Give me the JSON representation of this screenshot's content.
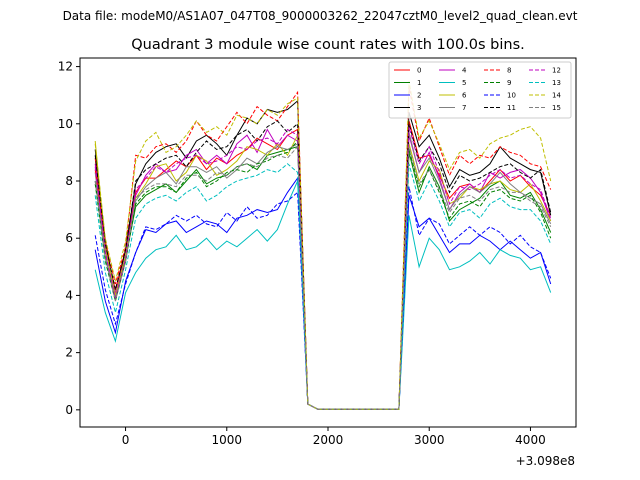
{
  "suptitle": "Data file: modeM0/AS1A07_047T08_9000003262_22047cztM0_level2_quad_clean.evt",
  "chart_data": {
    "type": "line",
    "title": "Quadrant 3 module wise count rates with 100.0s bins.",
    "xlabel": "",
    "ylabel": "",
    "x_offset_label": "+3.098e8",
    "xlim": [
      -450,
      4450
    ],
    "ylim": [
      -0.6,
      12.3
    ],
    "xticks": [
      0,
      1000,
      2000,
      3000,
      4000
    ],
    "yticks": [
      0,
      2,
      4,
      6,
      8,
      10,
      12
    ],
    "grid": false,
    "legend_position": "top-right",
    "legend_columns": 4,
    "x": [
      -300,
      -200,
      -100,
      0,
      100,
      200,
      300,
      400,
      500,
      600,
      700,
      800,
      900,
      1000,
      1100,
      1200,
      1300,
      1400,
      1500,
      1600,
      1700,
      1800,
      1900,
      2000,
      2100,
      2200,
      2300,
      2400,
      2500,
      2600,
      2700,
      2800,
      2900,
      3000,
      3100,
      3200,
      3300,
      3400,
      3500,
      3600,
      3700,
      3800,
      3900,
      4000,
      4100,
      4200
    ],
    "series": [
      {
        "name": "0",
        "color": "#ff0000",
        "dash": "solid",
        "values": [
          8.8,
          5.6,
          4.2,
          5.6,
          7.6,
          8.1,
          8.1,
          8.4,
          8.7,
          8.5,
          8.9,
          8.4,
          8.8,
          8.6,
          8.9,
          9.1,
          9.5,
          9.3,
          9.1,
          9.6,
          9.8,
          0.2,
          0.02,
          0.02,
          0.02,
          0.02,
          0.02,
          0.02,
          0.02,
          0.02,
          0.02,
          10.1,
          8.8,
          8.9,
          8.2,
          7.4,
          7.8,
          7.9,
          7.6,
          8.0,
          8.4,
          8.0,
          8.2,
          7.8,
          7.5,
          6.8
        ]
      },
      {
        "name": "1",
        "color": "#008000",
        "dash": "solid",
        "values": [
          8.0,
          5.3,
          4.0,
          5.3,
          7.1,
          7.5,
          7.7,
          7.9,
          7.6,
          8.0,
          8.4,
          7.9,
          8.1,
          8.2,
          8.5,
          8.6,
          8.4,
          8.9,
          9.0,
          9.1,
          9.2,
          0.2,
          0.02,
          0.02,
          0.02,
          0.02,
          0.02,
          0.02,
          0.02,
          0.02,
          0.02,
          9.0,
          7.6,
          8.5,
          7.8,
          6.6,
          7.0,
          7.2,
          7.4,
          7.8,
          8.0,
          7.5,
          7.4,
          7.6,
          7.0,
          6.2
        ]
      },
      {
        "name": "2",
        "color": "#0000ff",
        "dash": "solid",
        "values": [
          5.6,
          3.8,
          2.7,
          4.5,
          5.5,
          6.3,
          6.2,
          6.5,
          6.6,
          6.2,
          6.4,
          6.6,
          6.5,
          6.2,
          6.7,
          6.8,
          7.0,
          6.9,
          7.0,
          7.6,
          8.1,
          0.2,
          0.02,
          0.02,
          0.02,
          0.02,
          0.02,
          0.02,
          0.02,
          0.02,
          0.02,
          7.5,
          6.4,
          6.7,
          6.1,
          5.5,
          5.8,
          5.8,
          6.1,
          5.9,
          5.6,
          5.9,
          5.6,
          5.3,
          5.5,
          4.4
        ]
      },
      {
        "name": "3",
        "color": "#000000",
        "dash": "solid",
        "values": [
          9.1,
          5.9,
          4.0,
          5.6,
          7.9,
          8.6,
          9.0,
          9.2,
          9.3,
          8.8,
          9.4,
          9.6,
          9.3,
          8.9,
          9.6,
          10.2,
          10.0,
          10.5,
          10.4,
          10.5,
          10.8,
          0.2,
          0.02,
          0.02,
          0.02,
          0.02,
          0.02,
          0.02,
          0.02,
          0.02,
          0.02,
          10.4,
          9.2,
          9.6,
          8.8,
          7.8,
          8.4,
          8.2,
          8.3,
          8.6,
          9.2,
          8.8,
          8.6,
          8.4,
          8.3,
          6.8
        ]
      },
      {
        "name": "4",
        "color": "#bf00bf",
        "dash": "solid",
        "values": [
          8.6,
          5.6,
          4.1,
          5.4,
          7.5,
          8.2,
          8.6,
          8.3,
          8.4,
          8.9,
          9.1,
          8.6,
          8.9,
          8.6,
          9.3,
          9.6,
          9.0,
          9.8,
          9.2,
          9.6,
          9.4,
          0.2,
          0.02,
          0.02,
          0.02,
          0.02,
          0.02,
          0.02,
          0.02,
          0.02,
          0.02,
          9.6,
          8.3,
          9.0,
          8.1,
          7.0,
          7.6,
          7.9,
          7.6,
          8.3,
          8.1,
          8.3,
          8.4,
          8.1,
          7.6,
          6.6
        ]
      },
      {
        "name": "5",
        "color": "#00bfbf",
        "dash": "solid",
        "values": [
          4.9,
          3.4,
          2.4,
          4.1,
          4.8,
          5.3,
          5.6,
          5.7,
          6.1,
          5.6,
          5.7,
          6.0,
          5.6,
          5.9,
          5.7,
          6.0,
          6.3,
          5.9,
          6.3,
          7.2,
          8.0,
          0.2,
          0.02,
          0.02,
          0.02,
          0.02,
          0.02,
          0.02,
          0.02,
          0.02,
          0.02,
          6.8,
          5.0,
          6.0,
          5.6,
          4.9,
          5.0,
          5.2,
          5.5,
          5.1,
          5.6,
          5.4,
          5.3,
          4.9,
          5.0,
          4.1
        ]
      },
      {
        "name": "6",
        "color": "#bfbf00",
        "dash": "solid",
        "values": [
          9.4,
          5.7,
          4.0,
          5.4,
          7.4,
          7.9,
          8.5,
          8.6,
          8.0,
          8.3,
          8.9,
          8.7,
          8.2,
          8.4,
          8.7,
          9.2,
          9.1,
          8.9,
          9.3,
          8.9,
          9.6,
          0.2,
          0.02,
          0.02,
          0.02,
          0.02,
          0.02,
          0.02,
          0.02,
          0.02,
          0.02,
          9.3,
          8.0,
          8.7,
          8.4,
          7.2,
          7.4,
          7.8,
          7.7,
          7.9,
          8.0,
          7.7,
          7.6,
          7.9,
          7.3,
          6.6
        ]
      },
      {
        "name": "7",
        "color": "#808080",
        "dash": "solid",
        "values": [
          8.3,
          5.4,
          3.9,
          5.2,
          7.3,
          7.8,
          8.1,
          8.3,
          7.9,
          8.5,
          8.5,
          8.3,
          8.5,
          8.1,
          8.4,
          8.8,
          8.6,
          9.0,
          9.2,
          9.1,
          9.3,
          0.2,
          0.02,
          0.02,
          0.02,
          0.02,
          0.02,
          0.02,
          0.02,
          0.02,
          0.02,
          9.7,
          8.3,
          8.8,
          8.0,
          7.0,
          7.5,
          7.8,
          7.6,
          7.9,
          8.3,
          7.9,
          7.6,
          7.4,
          7.2,
          6.5
        ]
      },
      {
        "name": "8",
        "color": "#ff0000",
        "dash": "dashed",
        "values": [
          8.4,
          5.9,
          4.4,
          5.7,
          8.9,
          8.8,
          9.2,
          9.3,
          9.0,
          9.4,
          10.1,
          9.6,
          9.4,
          9.9,
          10.4,
          10.0,
          10.6,
          10.3,
          10.1,
          10.6,
          11.1,
          0.2,
          0.02,
          0.02,
          0.02,
          0.02,
          0.02,
          0.02,
          0.02,
          0.02,
          0.02,
          11.3,
          9.4,
          10.2,
          9.2,
          8.2,
          8.9,
          8.6,
          8.9,
          8.8,
          9.2,
          9.0,
          8.9,
          8.6,
          8.5,
          7.7
        ]
      },
      {
        "name": "9",
        "color": "#008000",
        "dash": "dashed",
        "values": [
          7.9,
          5.2,
          3.8,
          5.2,
          7.2,
          7.6,
          7.8,
          7.8,
          7.6,
          8.1,
          8.3,
          7.8,
          8.0,
          8.3,
          8.4,
          8.3,
          8.6,
          8.7,
          8.9,
          9.0,
          9.4,
          0.2,
          0.02,
          0.02,
          0.02,
          0.02,
          0.02,
          0.02,
          0.02,
          0.02,
          0.02,
          9.1,
          7.8,
          8.4,
          7.6,
          6.7,
          7.2,
          7.3,
          7.1,
          7.6,
          7.7,
          7.4,
          7.3,
          7.5,
          6.9,
          6.0
        ]
      },
      {
        "name": "10",
        "color": "#0000ff",
        "dash": "dashed",
        "values": [
          6.1,
          4.2,
          3.0,
          4.4,
          5.5,
          6.4,
          6.3,
          6.5,
          6.8,
          6.6,
          6.8,
          6.5,
          6.4,
          6.9,
          6.6,
          7.1,
          6.7,
          6.8,
          7.2,
          7.3,
          7.6,
          0.2,
          0.02,
          0.02,
          0.02,
          0.02,
          0.02,
          0.02,
          0.02,
          0.02,
          0.02,
          7.8,
          6.1,
          6.7,
          6.5,
          5.8,
          6.1,
          6.4,
          6.1,
          6.4,
          6.2,
          5.8,
          6.1,
          5.7,
          5.5,
          4.6
        ]
      },
      {
        "name": "11",
        "color": "#000000",
        "dash": "dashed",
        "values": [
          8.9,
          5.8,
          4.2,
          5.6,
          8.0,
          8.4,
          8.6,
          8.8,
          8.9,
          8.5,
          9.0,
          9.4,
          9.1,
          9.2,
          9.6,
          9.8,
          9.4,
          9.9,
          10.1,
          9.7,
          10.0,
          0.2,
          0.02,
          0.02,
          0.02,
          0.02,
          0.02,
          0.02,
          0.02,
          0.02,
          0.02,
          10.0,
          8.7,
          9.2,
          8.6,
          7.6,
          8.2,
          8.0,
          8.1,
          8.3,
          8.5,
          8.6,
          8.3,
          8.1,
          8.4,
          6.9
        ]
      },
      {
        "name": "12",
        "color": "#bf00bf",
        "dash": "dashed",
        "values": [
          8.5,
          5.5,
          3.9,
          5.3,
          7.7,
          8.1,
          8.5,
          8.3,
          8.6,
          8.8,
          8.9,
          8.6,
          8.7,
          8.9,
          9.2,
          9.1,
          9.4,
          9.5,
          9.3,
          9.8,
          9.6,
          0.2,
          0.02,
          0.02,
          0.02,
          0.02,
          0.02,
          0.02,
          0.02,
          0.02,
          0.02,
          9.9,
          8.6,
          9.2,
          8.3,
          7.2,
          7.8,
          7.7,
          7.9,
          8.2,
          8.4,
          8.1,
          8.2,
          7.9,
          7.7,
          6.7
        ]
      },
      {
        "name": "13",
        "color": "#00bfbf",
        "dash": "dashed",
        "values": [
          7.5,
          4.8,
          3.4,
          4.9,
          6.7,
          7.2,
          7.4,
          7.5,
          7.3,
          7.6,
          7.8,
          7.3,
          7.5,
          7.8,
          8.0,
          8.1,
          8.2,
          8.4,
          8.3,
          8.6,
          8.3,
          0.2,
          0.02,
          0.02,
          0.02,
          0.02,
          0.02,
          0.02,
          0.02,
          0.02,
          0.02,
          8.6,
          7.3,
          8.0,
          7.3,
          6.4,
          6.9,
          7.0,
          6.7,
          7.2,
          7.4,
          7.1,
          7.0,
          7.0,
          6.6,
          5.8
        ]
      },
      {
        "name": "14",
        "color": "#bfbf00",
        "dash": "dashed",
        "values": [
          9.3,
          6.0,
          4.5,
          5.9,
          8.7,
          9.4,
          9.7,
          9.0,
          9.2,
          9.6,
          10.1,
          9.7,
          9.9,
          9.6,
          10.3,
          10.2,
          10.0,
          10.5,
          10.3,
          10.7,
          10.9,
          0.2,
          0.02,
          0.02,
          0.02,
          0.02,
          0.02,
          0.02,
          0.02,
          0.02,
          0.02,
          11.5,
          9.5,
          10.1,
          9.3,
          8.4,
          9.0,
          9.1,
          8.8,
          9.3,
          9.5,
          9.6,
          9.8,
          9.9,
          9.5,
          8.0
        ]
      },
      {
        "name": "15",
        "color": "#808080",
        "dash": "dashed",
        "values": [
          8.0,
          5.3,
          3.8,
          5.2,
          7.4,
          7.7,
          7.9,
          7.9,
          7.8,
          8.2,
          8.2,
          8.0,
          8.3,
          8.2,
          8.5,
          8.6,
          8.5,
          8.8,
          8.9,
          8.8,
          9.2,
          0.2,
          0.02,
          0.02,
          0.02,
          0.02,
          0.02,
          0.02,
          0.02,
          0.02,
          0.02,
          9.2,
          7.9,
          8.4,
          7.7,
          6.9,
          7.4,
          7.5,
          7.3,
          7.7,
          7.8,
          7.6,
          7.6,
          7.3,
          7.1,
          6.4
        ]
      }
    ]
  }
}
